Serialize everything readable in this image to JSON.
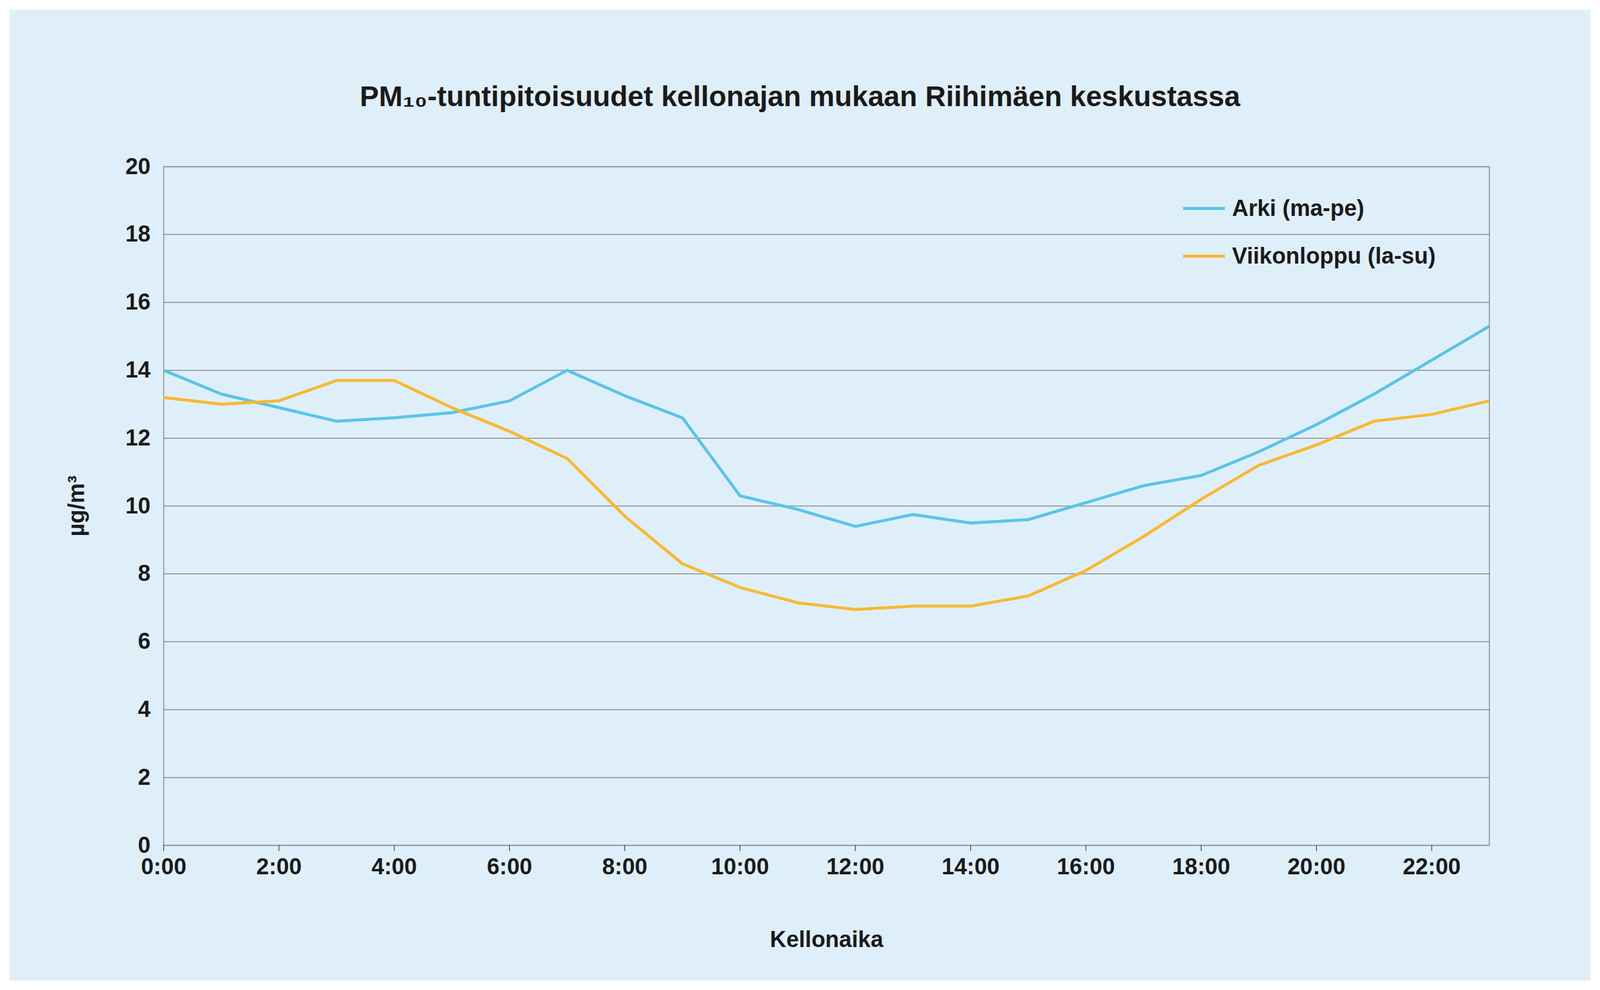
{
  "chart_data": {
    "type": "line",
    "title": "PM₁₀-tuntipitoisuudet kellonajan mukaan Riihimäen keskustassa",
    "x_label": "Kellonaika",
    "y_label": "µg/m³",
    "x": [
      0,
      1,
      2,
      3,
      4,
      5,
      6,
      7,
      8,
      9,
      10,
      11,
      12,
      13,
      14,
      15,
      16,
      17,
      18,
      19,
      20,
      21,
      22,
      23
    ],
    "series": [
      {
        "name": "Arki (ma-pe)",
        "color": "#5bc4e6",
        "values": [
          14.0,
          13.3,
          12.9,
          12.5,
          12.6,
          12.75,
          13.1,
          14.0,
          13.25,
          12.6,
          10.3,
          9.9,
          9.4,
          9.75,
          9.5,
          9.6,
          10.1,
          10.6,
          10.9,
          11.6,
          12.4,
          13.3,
          14.3,
          15.3
        ]
      },
      {
        "name": "Viikonloppu (la-su)",
        "color": "#f7b932",
        "values": [
          13.2,
          13.0,
          13.1,
          13.7,
          13.7,
          12.9,
          12.2,
          11.4,
          9.7,
          8.3,
          7.6,
          7.15,
          6.95,
          7.05,
          7.05,
          7.35,
          8.1,
          9.1,
          10.2,
          11.2,
          11.8,
          12.5,
          12.7,
          13.1
        ]
      }
    ],
    "xlim": [
      0,
      23
    ],
    "xticks": [
      {
        "value": 0,
        "label": "0:00"
      },
      {
        "value": 2,
        "label": "2:00"
      },
      {
        "value": 4,
        "label": "4:00"
      },
      {
        "value": 6,
        "label": "6:00"
      },
      {
        "value": 8,
        "label": "8:00"
      },
      {
        "value": 10,
        "label": "10:00"
      },
      {
        "value": 12,
        "label": "12:00"
      },
      {
        "value": 14,
        "label": "14:00"
      },
      {
        "value": 16,
        "label": "16:00"
      },
      {
        "value": 18,
        "label": "18:00"
      },
      {
        "value": 20,
        "label": "20:00"
      },
      {
        "value": 22,
        "label": "22:00"
      }
    ],
    "ylim": [
      0,
      20
    ],
    "yticks": [
      0,
      2,
      4,
      6,
      8,
      10,
      12,
      14,
      16,
      18,
      20
    ],
    "grid": true,
    "legend": "top-right"
  }
}
